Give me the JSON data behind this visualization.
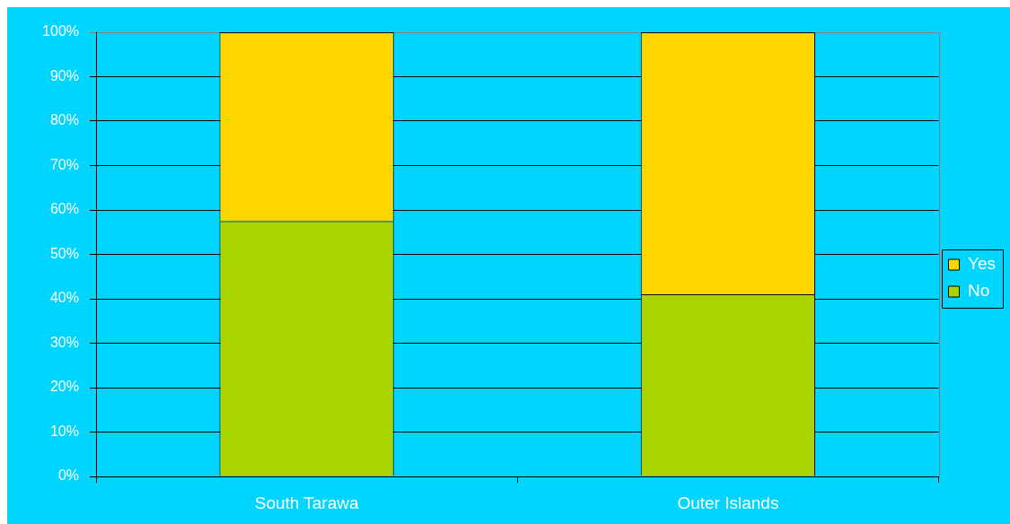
{
  "chart_data": {
    "type": "bar",
    "categories": [
      "South Tarawa",
      "Outer Islands"
    ],
    "series": [
      {
        "name": "No",
        "color": "#aad400",
        "values": [
          57.5,
          41
        ]
      },
      {
        "name": "Yes",
        "color": "#ffd500",
        "values": [
          42.5,
          59
        ]
      }
    ],
    "stacked": true,
    "ylim": [
      0,
      100
    ],
    "yticks": [
      {
        "value": 0,
        "label": "0%"
      },
      {
        "value": 10,
        "label": "10%"
      },
      {
        "value": 20,
        "label": "20%"
      },
      {
        "value": 30,
        "label": "30%"
      },
      {
        "value": 40,
        "label": "40%"
      },
      {
        "value": 50,
        "label": "50%"
      },
      {
        "value": 60,
        "label": "60%"
      },
      {
        "value": 70,
        "label": "70%"
      },
      {
        "value": 80,
        "label": "80%"
      },
      {
        "value": 90,
        "label": "90%"
      },
      {
        "value": 100,
        "label": "100%"
      }
    ],
    "grid": "y",
    "legend": "right"
  }
}
